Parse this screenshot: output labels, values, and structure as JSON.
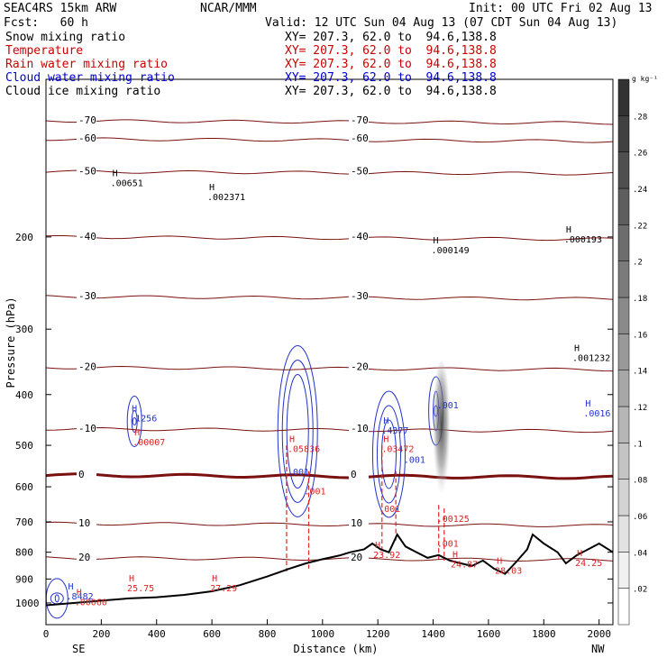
{
  "header": {
    "model": "SEAC4RS 15km ARW",
    "center": "NCAR/MMM",
    "init": "Init: 00 UTC Fri 02 Aug 13",
    "fcst": "Fcst:   60 h",
    "valid": "Valid: 12 UTC Sun 04 Aug 13 (07 CDT Sun 04 Aug 13)"
  },
  "fields": [
    {
      "name": "Snow mixing ratio",
      "xy": "XY= 207.3, 62.0 to  94.6,138.8",
      "color": "#000000"
    },
    {
      "name": "Temperature",
      "xy": "XY= 207.3, 62.0 to  94.6,138.8",
      "color": "#cc0000"
    },
    {
      "name": "Rain water mixing ratio",
      "xy": "XY= 207.3, 62.0 to  94.6,138.8",
      "color": "#cc0000"
    },
    {
      "name": "Cloud water mixing ratio",
      "xy": "XY= 207.3, 62.0 to  94.6,138.8",
      "color": "#0000cc"
    },
    {
      "name": "Cloud ice mixing ratio",
      "xy": "XY= 207.3, 62.0 to  94.6,138.8",
      "color": "#000000"
    }
  ],
  "colors": {
    "temperature": "#7a1010",
    "rain": "#dd2222",
    "cloud_water": "#2233cc",
    "terrain": "#000000"
  },
  "chart_data": {
    "type": "cross-section",
    "xlabel": "Distance (km)",
    "ylabel": "Pressure (hPa)",
    "xlim": [
      0,
      2050
    ],
    "ylim": [
      1100,
      100
    ],
    "y_scale": "log",
    "x_ticks": [
      0,
      200,
      400,
      600,
      800,
      1000,
      1200,
      1400,
      1600,
      1800,
      2000
    ],
    "y_ticks": [
      200,
      300,
      400,
      500,
      600,
      700,
      800,
      900,
      1000
    ],
    "x_end_labels": {
      "left": "SE",
      "right": "NW"
    },
    "colorbar": {
      "unit": "g kg⁻¹",
      "ticks": [
        ".02",
        ".04",
        ".06",
        ".08",
        ".1",
        ".12",
        ".14",
        ".16",
        ".18",
        ".2",
        ".22",
        ".24",
        ".26",
        ".28"
      ]
    },
    "temperature_contours": [
      {
        "value": -70,
        "p": 120,
        "label": "-70"
      },
      {
        "value": -60,
        "p": 130,
        "label": "-60"
      },
      {
        "value": -50,
        "p": 150,
        "label": "-50"
      },
      {
        "value": -40,
        "p": 200,
        "label": "-40"
      },
      {
        "value": -30,
        "p": 260,
        "label": "-30"
      },
      {
        "value": -20,
        "p": 355,
        "label": "-20"
      },
      {
        "value": -10,
        "p": 465,
        "label": "-10"
      },
      {
        "value": 0,
        "p": 570,
        "label": "0"
      },
      {
        "value": 10,
        "p": 705,
        "label": "10"
      },
      {
        "value": 20,
        "p": 820,
        "label": "20"
      }
    ],
    "terrain": {
      "x": [
        0,
        100,
        200,
        300,
        400,
        500,
        600,
        700,
        800,
        880,
        940,
        1000,
        1060,
        1100,
        1150,
        1180,
        1210,
        1240,
        1270,
        1300,
        1340,
        1380,
        1420,
        1460,
        1500,
        1540,
        1580,
        1620,
        1660,
        1700,
        1740,
        1760,
        1800,
        1850,
        1880,
        1920,
        1960,
        2000,
        2050
      ],
      "p": [
        1010,
        1000,
        990,
        980,
        975,
        965,
        950,
        925,
        890,
        860,
        840,
        825,
        812,
        800,
        790,
        770,
        790,
        800,
        740,
        780,
        800,
        820,
        810,
        830,
        840,
        850,
        830,
        860,
        880,
        835,
        790,
        740,
        770,
        800,
        840,
        810,
        790,
        770,
        800
      ]
    },
    "H_labels": [
      {
        "x": 80,
        "p": 985,
        "value": ".8482",
        "color": "blue"
      },
      {
        "x": 110,
        "p": 1010,
        "value": ".00060",
        "color": "red"
      },
      {
        "x": 300,
        "p": 950,
        "value": "25.75",
        "color": "red"
      },
      {
        "x": 600,
        "p": 950,
        "value": "27.29",
        "color": "red"
      },
      {
        "x": 310,
        "p": 450,
        "value": ".1256",
        "color": "blue"
      },
      {
        "x": 320,
        "p": 500,
        "value": ".00007",
        "color": "red"
      },
      {
        "x": 240,
        "p": 160,
        "value": ".00651",
        "color": "black"
      },
      {
        "x": 590,
        "p": 170,
        "value": ".002371",
        "color": "black"
      },
      {
        "x": 1400,
        "p": 215,
        "value": ".000149",
        "color": "black"
      },
      {
        "x": 1880,
        "p": 205,
        "value": ".000193",
        "color": "black"
      },
      {
        "x": 1910,
        "p": 345,
        "value": ".001232",
        "color": "black"
      },
      {
        "x": 1950,
        "p": 440,
        "value": ".0016",
        "color": "blue"
      },
      {
        "x": 1220,
        "p": 475,
        "value": ".4377",
        "color": "blue"
      },
      {
        "x": 1220,
        "p": 515,
        "value": ".03472",
        "color": "red"
      },
      {
        "x": 880,
        "p": 515,
        "value": ".05836",
        "color": "red"
      },
      {
        "x": 1190,
        "p": 820,
        "value": "23.92",
        "color": "red"
      },
      {
        "x": 1470,
        "p": 855,
        "value": "24.87",
        "color": "red"
      },
      {
        "x": 1630,
        "p": 880,
        "value": "28.03",
        "color": "red"
      },
      {
        "x": 1920,
        "p": 850,
        "value": "24.25",
        "color": "red"
      }
    ],
    "contour_value_labels": [
      {
        "x": 880,
        "p": 570,
        "value": ".001",
        "color": "blue"
      },
      {
        "x": 940,
        "p": 620,
        "value": ".001",
        "color": "red"
      },
      {
        "x": 1300,
        "p": 540,
        "value": ".001",
        "color": "blue"
      },
      {
        "x": 1210,
        "p": 670,
        "value": ".001",
        "color": "red"
      },
      {
        "x": 1420,
        "p": 425,
        "value": ".001",
        "color": "blue"
      },
      {
        "x": 1420,
        "p": 700,
        "value": ".00125",
        "color": "red"
      },
      {
        "x": 1420,
        "p": 780,
        "value": ".001",
        "color": "red"
      }
    ]
  }
}
